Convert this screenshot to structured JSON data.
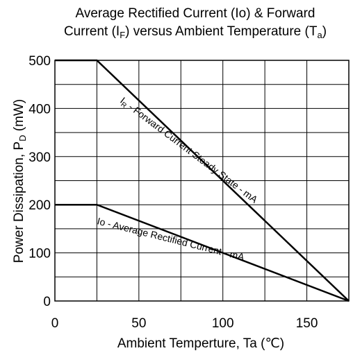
{
  "chart_data": {
    "type": "line",
    "title_line1": "Average Rectified Current (Io) & Forward",
    "title_line2_a": "Current (I",
    "title_line2_sub1": "F",
    "title_line2_b": ") versus Ambient Temperature (T",
    "title_line2_sub2": "a",
    "title_line2_c": ")",
    "xlabel": "Ambient Temperture, Ta (℃)",
    "ylabel_main": "Power Dissipation, P",
    "ylabel_sub": "D",
    "ylabel_unit": " (mW)",
    "xlim": [
      0,
      175
    ],
    "ylim": [
      0,
      500
    ],
    "x_ticks": [
      0,
      50,
      100,
      150
    ],
    "y_ticks": [
      0,
      100,
      200,
      300,
      400,
      500
    ],
    "grid": true,
    "series": [
      {
        "name": "Forward Current Steady State - mA",
        "label_prefix": "I",
        "label_sub": "R",
        "label_rest": " - Forward Current Steady State - mA",
        "x": [
          0,
          25,
          175
        ],
        "y": [
          500,
          500,
          0
        ]
      },
      {
        "name": "Io - Average Rectified Current - mA",
        "label_prefix": "Io",
        "label_sub": "",
        "label_rest": " - Average Rectified Current - mA",
        "x": [
          0,
          25,
          175
        ],
        "y": [
          200,
          200,
          0
        ]
      }
    ]
  }
}
